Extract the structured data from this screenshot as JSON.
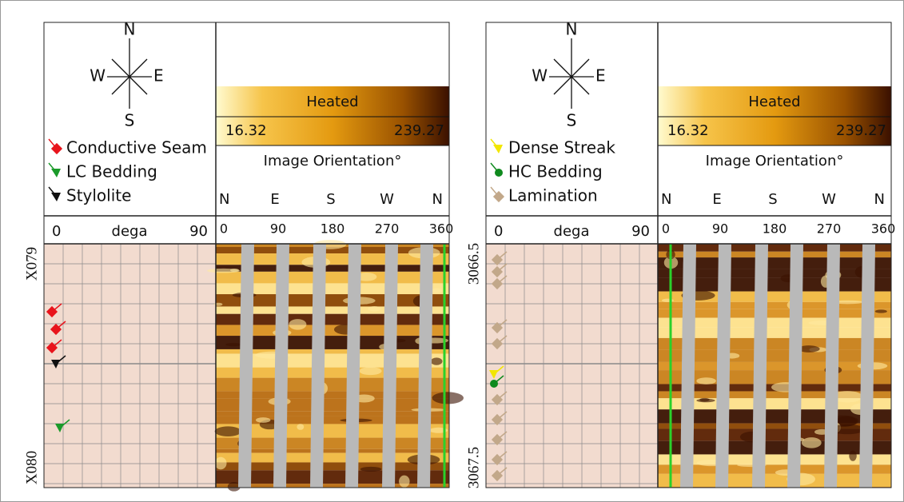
{
  "panels": [
    {
      "compass": {
        "n": "N",
        "w": "W",
        "e": "E",
        "s": "S"
      },
      "legend": [
        {
          "label": "Conductive Seam",
          "color": "#e8141c"
        },
        {
          "label": "LC Bedding",
          "color": "#1a9a2a"
        },
        {
          "label": "Stylolite",
          "color": "#111111"
        }
      ],
      "colorbar": {
        "label": "Heated",
        "min": "16.32",
        "max": "239.27"
      },
      "orientation_title": "Image Orientation°",
      "directions": [
        "N",
        "E",
        "S",
        "W",
        "N"
      ],
      "dip_scale": {
        "min": "0",
        "label": "dega",
        "max": "90"
      },
      "azimuth_ticks": [
        "0",
        "90",
        "180",
        "270",
        "360"
      ],
      "depth": {
        "top": "X079",
        "bottom": "X080"
      }
    },
    {
      "compass": {
        "n": "N",
        "w": "W",
        "e": "E",
        "s": "S"
      },
      "legend": [
        {
          "label": "Dense Streak",
          "color": "#f2e600"
        },
        {
          "label": "HC Bedding",
          "color": "#0f8a1e"
        },
        {
          "label": "Lamination",
          "color": "#c2a88a"
        }
      ],
      "colorbar": {
        "label": "Heated",
        "min": "16.32",
        "max": "239.27"
      },
      "orientation_title": "Image Orientation°",
      "directions": [
        "N",
        "E",
        "S",
        "W",
        "N"
      ],
      "dip_scale": {
        "min": "0",
        "label": "dega",
        "max": "90"
      },
      "azimuth_ticks": [
        "0",
        "90",
        "180",
        "270",
        "360"
      ],
      "depth": {
        "top": "3066.5",
        "bottom": "3067.5"
      }
    }
  ]
}
